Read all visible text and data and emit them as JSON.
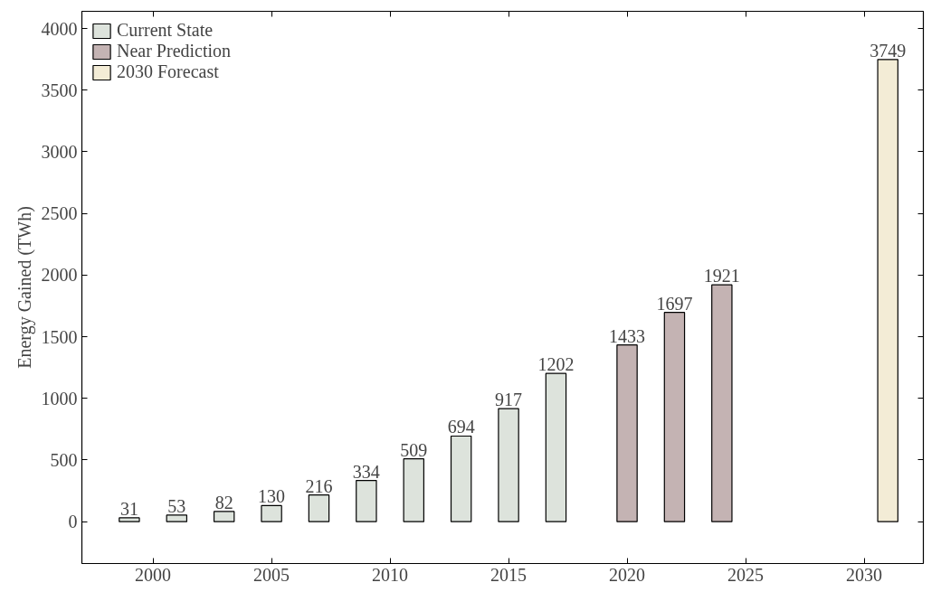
{
  "chart_data": {
    "type": "bar",
    "ylabel": "Energy Gained (TWh)",
    "xlim": [
      1997,
      2032.5
    ],
    "xticks": [
      2000,
      2005,
      2010,
      2015,
      2020,
      2025,
      2030
    ],
    "ylim": [
      -340,
      4140
    ],
    "yticks": [
      0,
      500,
      1000,
      1500,
      2000,
      2500,
      3000,
      3500,
      4000
    ],
    "series": [
      {
        "name": "Current State",
        "color": "#dde3dc",
        "x": [
          1999,
          2001,
          2003,
          2005,
          2007,
          2009,
          2011,
          2013,
          2015,
          2017
        ],
        "values": [
          31,
          53,
          82,
          130,
          216,
          334,
          509,
          694,
          917,
          1202
        ]
      },
      {
        "name": "Near Prediction",
        "color": "#c4b3b3",
        "x": [
          2020,
          2022,
          2024
        ],
        "values": [
          1433,
          1697,
          1921
        ]
      },
      {
        "name": "2030 Forecast",
        "color": "#f3ecd6",
        "x": [
          2031
        ],
        "values": [
          3749
        ]
      }
    ],
    "data_labels": true,
    "legend": "top left",
    "grid": false
  }
}
